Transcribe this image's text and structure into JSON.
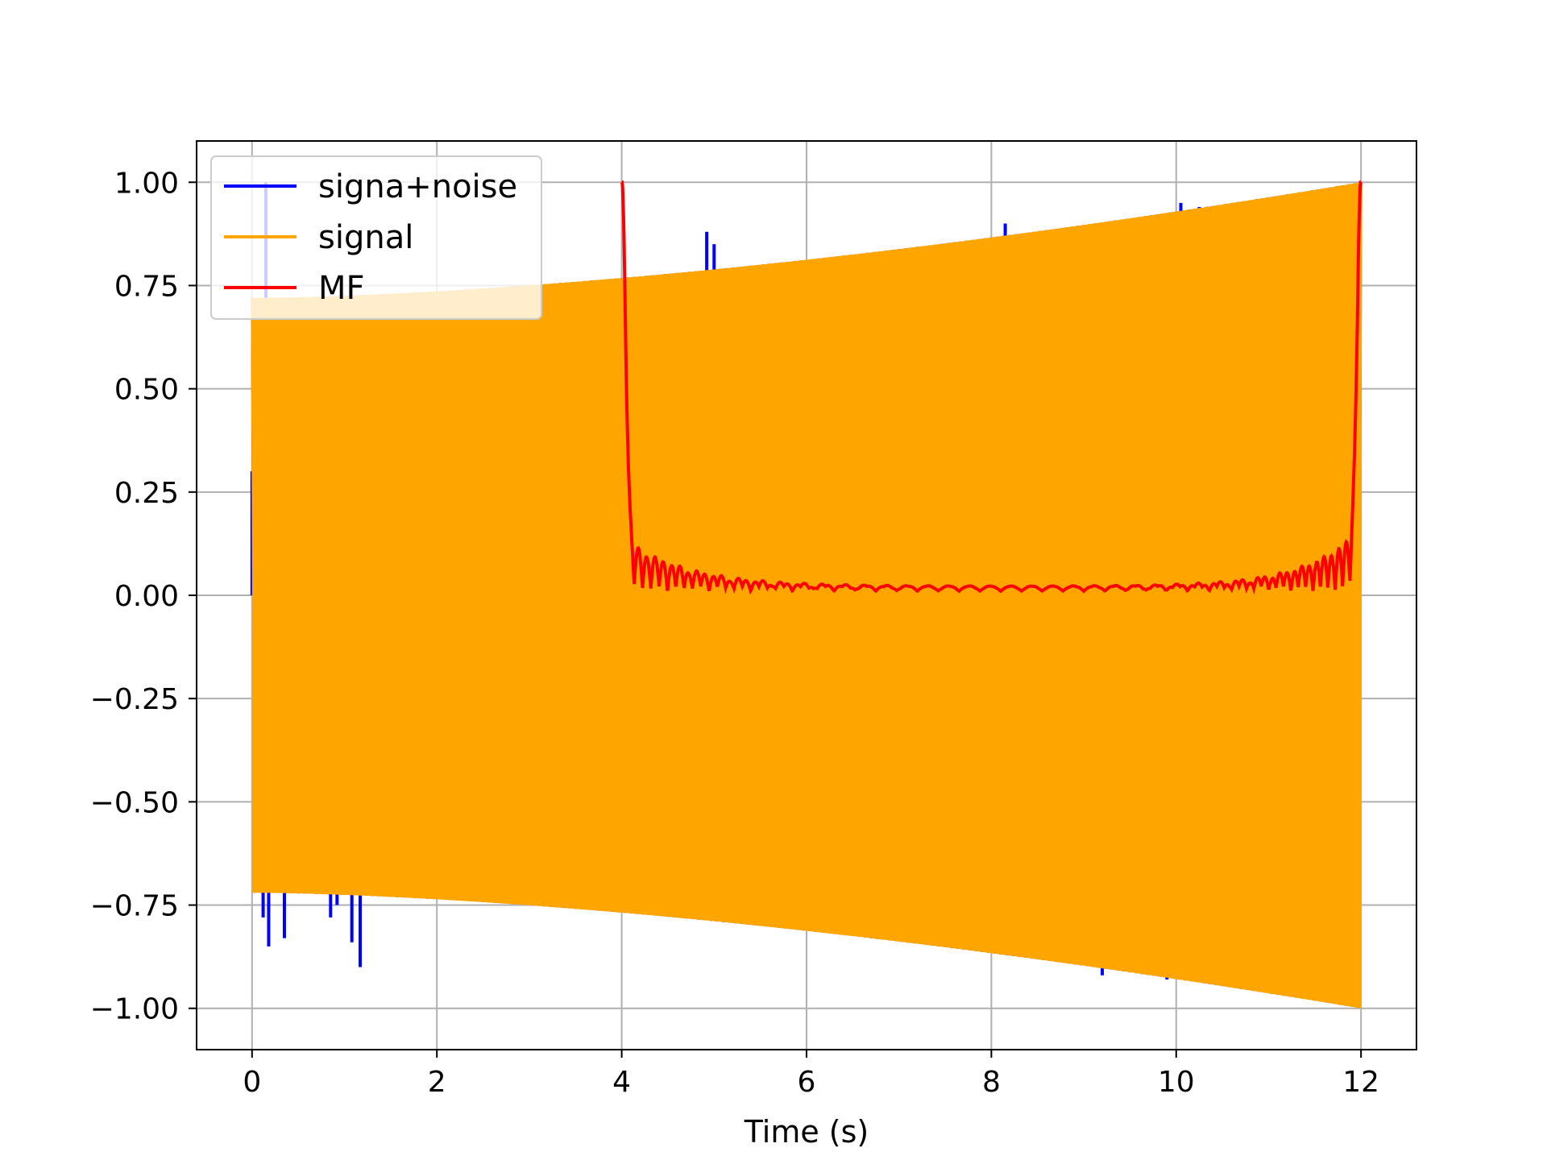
{
  "chart_data": {
    "type": "line",
    "title": "",
    "xlabel": "Time (s)",
    "ylabel": "",
    "xlim": [
      -0.6,
      12.6
    ],
    "ylim": [
      -1.1,
      1.1
    ],
    "x_ticks": [
      0,
      2,
      4,
      6,
      8,
      10,
      12
    ],
    "x_tick_labels": [
      "0",
      "2",
      "4",
      "6",
      "8",
      "10",
      "12"
    ],
    "y_ticks": [
      1.0,
      0.75,
      0.5,
      0.25,
      0.0,
      -0.25,
      -0.5,
      -0.75,
      -1.0
    ],
    "y_tick_labels": [
      "1.00",
      "0.75",
      "0.50",
      "0.25",
      "0.00",
      "−0.25",
      "−0.50",
      "−0.75",
      "−1.00"
    ],
    "grid": true,
    "legend_position": "top-left",
    "series": [
      {
        "name": "signa+noise",
        "color": "#0000ff",
        "description_envelope": "chirp signal plus sparse impulsive noise, t from 0 to 12 s",
        "t_range": [
          0,
          12
        ],
        "envelope_start": 0.72,
        "envelope_end": 1.0,
        "noise_spikes": [
          {
            "t": 0.0,
            "v": 0.3
          },
          {
            "t": 0.15,
            "v": 1.0
          },
          {
            "t": 0.12,
            "v": -0.78
          },
          {
            "t": 0.18,
            "v": -0.85
          },
          {
            "t": 0.35,
            "v": -0.83
          },
          {
            "t": 0.85,
            "v": -0.78
          },
          {
            "t": 0.92,
            "v": -0.75
          },
          {
            "t": 1.08,
            "v": -0.84
          },
          {
            "t": 1.17,
            "v": -0.9
          },
          {
            "t": 4.92,
            "v": 0.88
          },
          {
            "t": 5.0,
            "v": 0.85
          },
          {
            "t": 8.15,
            "v": 0.9
          },
          {
            "t": 9.2,
            "v": -0.92
          },
          {
            "t": 9.9,
            "v": -0.93
          },
          {
            "t": 10.05,
            "v": 0.95
          },
          {
            "t": 10.25,
            "v": 0.94
          },
          {
            "t": 11.35,
            "v": -0.97
          },
          {
            "t": 11.95,
            "v": 0.35
          }
        ]
      },
      {
        "name": "signal",
        "color": "#ffa500",
        "t_range": [
          0,
          12
        ],
        "envelope_start": 0.72,
        "envelope_end": 1.0
      },
      {
        "name": "MF",
        "color": "#ff0000",
        "t_range": [
          4,
          12
        ],
        "peak_start": 1.0,
        "peak_end": 1.0,
        "floor": 0.01
      }
    ]
  }
}
